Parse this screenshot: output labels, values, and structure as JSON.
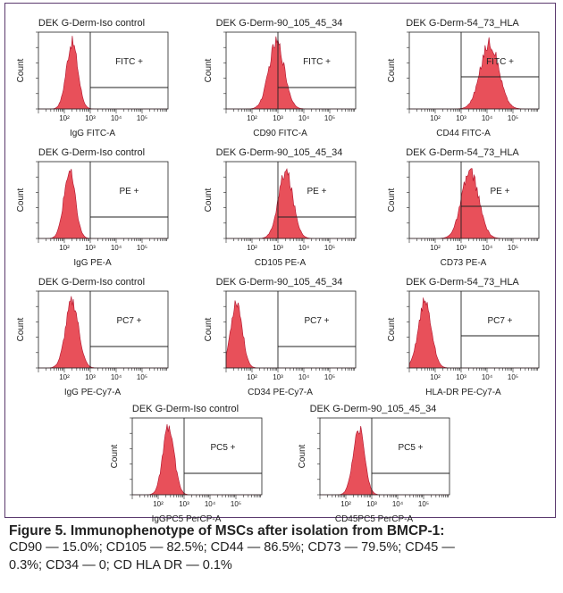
{
  "colors": {
    "histogram_fill": "#e8505a",
    "histogram_stroke": "#b0102a",
    "frame": "#5b3a6e",
    "axis": "#222222"
  },
  "chart_data": [
    {
      "type": "area",
      "title": "DEK G-Derm-Iso control",
      "xlabel": "IgG FITC-A",
      "ylabel": "Count",
      "gate_label": "FITC +",
      "peak_log10": 2.3,
      "spread": 0.22,
      "xscale": "log",
      "xlim": [
        10,
        1000000
      ],
      "xticks": [
        "10²",
        "10³",
        "10⁴",
        "10⁵"
      ]
    },
    {
      "type": "area",
      "title": "DEK G-Derm-90_105_45_34",
      "xlabel": "CD90 FITC-A",
      "ylabel": "Count",
      "gate_label": "FITC +",
      "peak_log10": 2.95,
      "spread": 0.3,
      "xscale": "log",
      "xlim": [
        10,
        1000000
      ],
      "xticks": [
        "10²",
        "10³",
        "10⁴",
        "10⁵"
      ]
    },
    {
      "type": "area",
      "title": "DEK G-Derm-54_73_HLA",
      "xlabel": "CD44 FITC-A",
      "ylabel": "Count",
      "gate_label": "FITC +",
      "peak_log10": 4.1,
      "spread": 0.35,
      "xscale": "log",
      "xlim": [
        10,
        1000000
      ],
      "xticks": [
        "10²",
        "10³",
        "10⁴",
        "10⁵"
      ]
    },
    {
      "type": "area",
      "title": "DEK G-Derm-Iso control",
      "xlabel": "IgG PE-A",
      "ylabel": "Count",
      "gate_label": "PE +",
      "peak_log10": 2.2,
      "spread": 0.22,
      "xscale": "log",
      "xlim": [
        10,
        1000000
      ],
      "xticks": [
        "10²",
        "10³",
        "10⁴",
        "10⁵"
      ]
    },
    {
      "type": "area",
      "title": "DEK G-Derm-90_105_45_34",
      "xlabel": "CD105 PE-A",
      "ylabel": "Count",
      "gate_label": "PE +",
      "peak_log10": 3.3,
      "spread": 0.28,
      "xscale": "log",
      "xlim": [
        10,
        1000000
      ],
      "xticks": [
        "10²",
        "10³",
        "10⁴",
        "10⁵"
      ]
    },
    {
      "type": "area",
      "title": "DEK G-Derm-54_73_HLA",
      "xlabel": "CD73 PE-A",
      "ylabel": "Count",
      "gate_label": "PE +",
      "peak_log10": 3.35,
      "spread": 0.33,
      "xscale": "log",
      "xlim": [
        10,
        1000000
      ],
      "xticks": [
        "10²",
        "10³",
        "10⁴",
        "10⁵"
      ]
    },
    {
      "type": "area",
      "title": "DEK G-Derm-Iso control",
      "xlabel": "IgG PE-Cy7-A",
      "ylabel": "Count",
      "gate_label": "PC7 +",
      "peak_log10": 2.3,
      "spread": 0.25,
      "xscale": "log",
      "xlim": [
        10,
        1000000
      ],
      "xticks": [
        "10²",
        "10³",
        "10⁴",
        "10⁵"
      ]
    },
    {
      "type": "area",
      "title": "DEK G-Derm-90_105_45_34",
      "xlabel": "CD34 PE-Cy7-A",
      "ylabel": "Count",
      "gate_label": "PC7 +",
      "peak_log10": 1.4,
      "spread": 0.22,
      "xscale": "log",
      "xlim": [
        10,
        1000000
      ],
      "xticks": [
        "10²",
        "10³",
        "10⁴",
        "10⁵"
      ]
    },
    {
      "type": "area",
      "title": "DEK G-Derm-54_73_HLA",
      "xlabel": "HLA-DR PE-Cy7-A",
      "ylabel": "Count",
      "gate_label": "PC7 +",
      "peak_log10": 1.6,
      "spread": 0.25,
      "xscale": "log",
      "xlim": [
        10,
        1000000
      ],
      "xticks": [
        "10²",
        "10³",
        "10⁴",
        "10⁵"
      ]
    },
    {
      "type": "area",
      "title": "DEK G-Derm-Iso control",
      "xlabel": "IgGPC5 PerCP-A",
      "ylabel": "Count",
      "gate_label": "PC5 +",
      "peak_log10": 2.4,
      "spread": 0.22,
      "xscale": "log",
      "xlim": [
        10,
        1000000
      ],
      "xticks": [
        "10²",
        "10³",
        "10⁴",
        "10⁵"
      ]
    },
    {
      "type": "area",
      "title": "DEK G-Derm-90_105_45_34",
      "xlabel": "CD45PC5 PerCP-A",
      "ylabel": "Count",
      "gate_label": "PC5 +",
      "peak_log10": 2.5,
      "spread": 0.22,
      "xscale": "log",
      "xlim": [
        10,
        1000000
      ],
      "xticks": [
        "10²",
        "10³",
        "10⁴",
        "10⁵"
      ]
    }
  ],
  "caption": {
    "title": "Figure 5. Immunophenotype of MSCs after isolation from BMCP-1:",
    "line1": "CD90 — 15.0%; CD105 — 82.5%; CD44 — 86.5%; CD73 — 79.5%; CD45 —",
    "line2": "0.3%; CD34 — 0; CD HLA DR — 0.1%"
  }
}
